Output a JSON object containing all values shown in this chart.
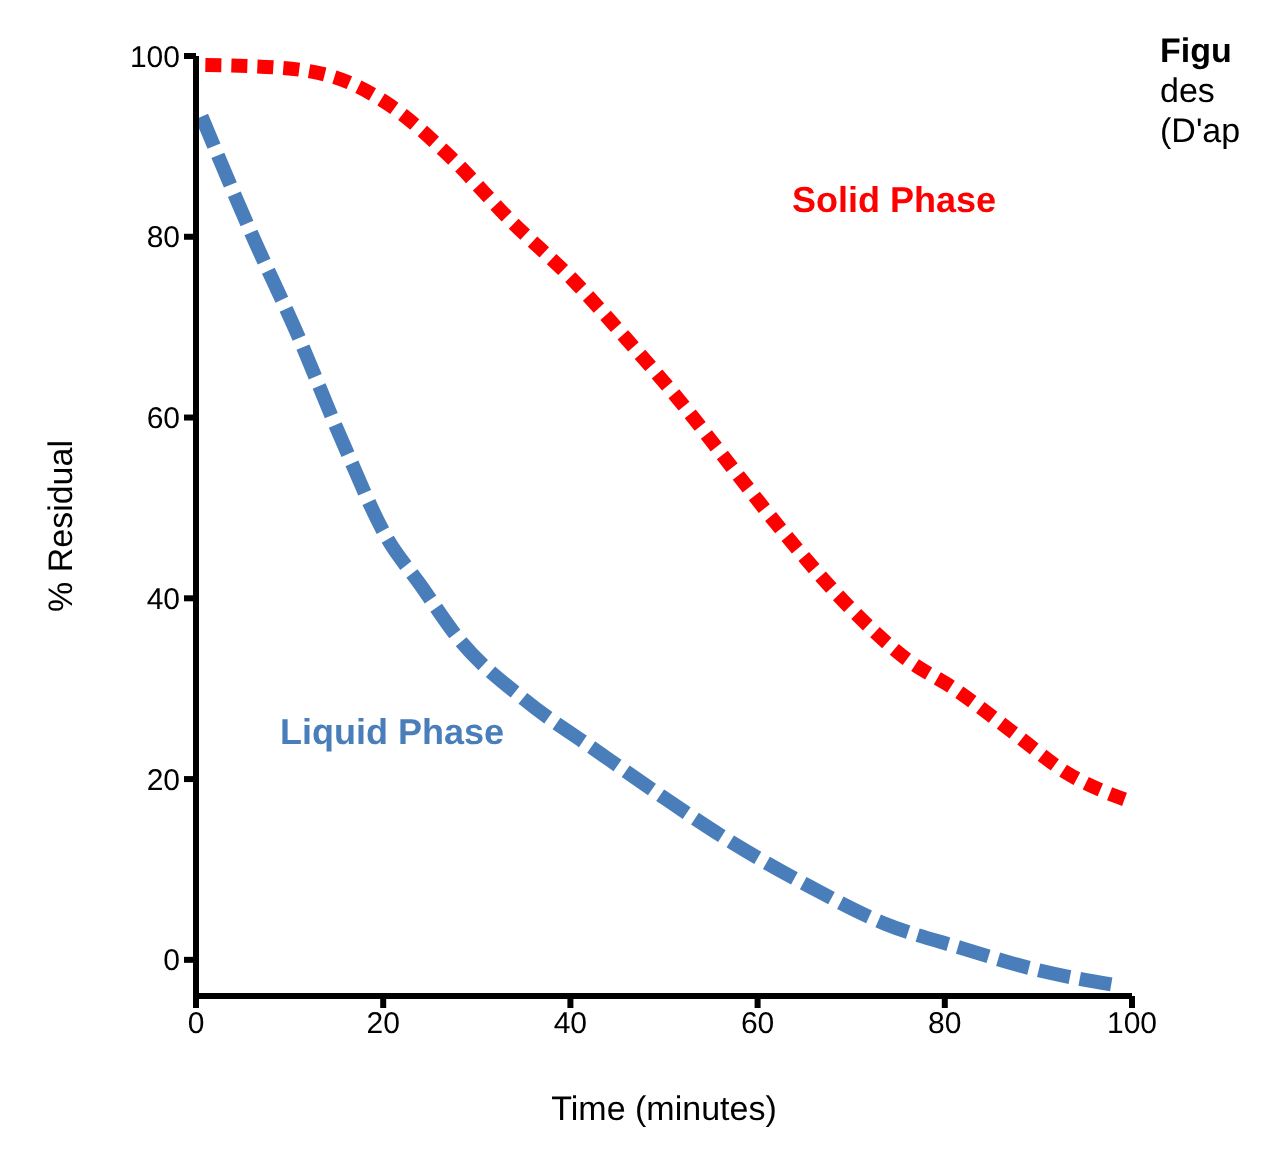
{
  "chart_data": {
    "type": "line",
    "xlabel": "Time (minutes)",
    "ylabel": "% Residual",
    "annotations": [
      "Figu",
      "des",
      "(D'ap"
    ],
    "xlim": [
      0,
      100
    ],
    "ylim": [
      -4,
      100
    ],
    "xticks": [
      0,
      20,
      40,
      60,
      80,
      100
    ],
    "yticks": [
      0,
      20,
      40,
      60,
      80,
      100
    ],
    "series": [
      {
        "name": "Solid Phase",
        "color": "#ff0000",
        "line_style": "dotted",
        "x": [
          1,
          9,
          16.5,
          20.5,
          27,
          33.7,
          40.2,
          45.9,
          51.8,
          57.4,
          63,
          70.3,
          76,
          81,
          87.5,
          93,
          99.6
        ],
        "values": [
          99,
          98.7,
          97,
          94.7,
          89,
          81.7,
          75.3,
          68.8,
          61.7,
          54.3,
          47,
          38.5,
          33.2,
          30,
          25,
          20.7,
          17.6
        ]
      },
      {
        "name": "Liquid Phase",
        "color": "#4a7ebb",
        "line_style": "dashed",
        "x": [
          0.6,
          5.9,
          10.8,
          15.7,
          20.5,
          23.9,
          28,
          35.2,
          42.7,
          49.9,
          57.4,
          65.4,
          73.6,
          81.8,
          89.8,
          98.8
        ],
        "values": [
          93.3,
          80.4,
          69.3,
          57.2,
          46.5,
          41.6,
          35.6,
          28.7,
          23.2,
          18,
          12.9,
          8.2,
          4,
          1.3,
          -1.1,
          -2.9
        ]
      }
    ]
  }
}
